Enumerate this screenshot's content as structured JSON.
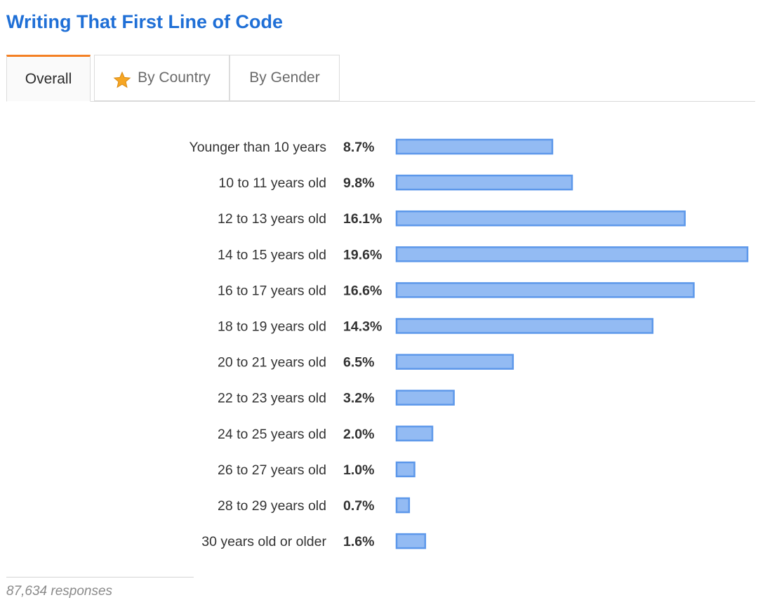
{
  "title": "Writing That First Line of Code",
  "tabs": [
    {
      "label": "Overall",
      "active": true,
      "icon": ""
    },
    {
      "label": "By Country",
      "active": false,
      "icon": "star-icon"
    },
    {
      "label": "By Gender",
      "active": false,
      "icon": ""
    }
  ],
  "colors": {
    "title": "#1f6fd6",
    "bar_fill": "#93bbf3",
    "bar_stroke": "#5d98ea",
    "active_tab_accent": "#f48024",
    "star_fill": "#f6a623"
  },
  "chart_data": {
    "type": "bar",
    "orientation": "horizontal",
    "categories": [
      "Younger than 10 years",
      "10 to 11 years old",
      "12 to 13 years old",
      "14 to 15 years old",
      "16 to 17 years old",
      "18 to 19 years old",
      "20 to 21 years old",
      "22 to 23 years old",
      "24 to 25 years old",
      "26 to 27 years old",
      "28 to 29 years old",
      "30 years old or older"
    ],
    "values": [
      8.7,
      9.8,
      16.1,
      19.6,
      16.6,
      14.3,
      6.5,
      3.2,
      2.0,
      1.0,
      0.7,
      1.6
    ],
    "value_labels": [
      "8.7%",
      "9.8%",
      "16.1%",
      "19.6%",
      "16.6%",
      "14.3%",
      "6.5%",
      "3.2%",
      "2.0%",
      "1.0%",
      "0.7%",
      "1.6%"
    ],
    "unit": "%",
    "xlim": [
      0,
      19.6
    ],
    "grid": false,
    "legend": "none"
  },
  "footer": "87,634 responses"
}
